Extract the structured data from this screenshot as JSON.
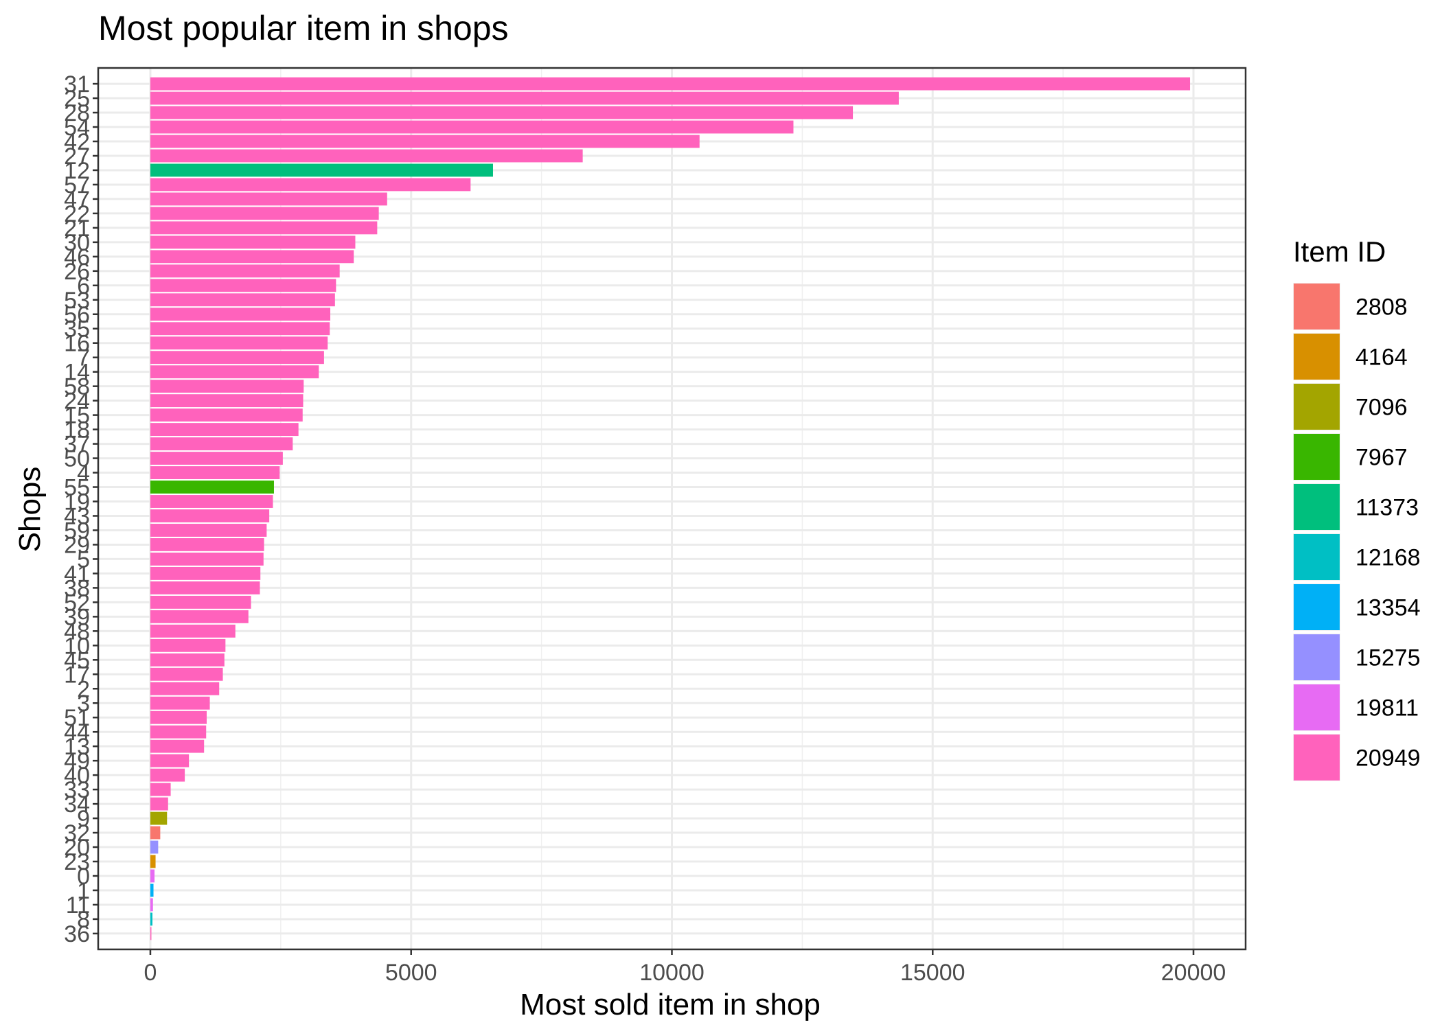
{
  "chart_data": {
    "type": "bar",
    "orientation": "horizontal",
    "title": "Most popular item in shops",
    "xlabel": "Most sold item in shop",
    "ylabel": "Shops",
    "xlim": [
      -1000,
      21000
    ],
    "x_ticks": [
      0,
      5000,
      10000,
      15000,
      20000
    ],
    "grid": true,
    "legend_position": "right",
    "legend": {
      "title": "Item ID",
      "entries": [
        {
          "label": "2808",
          "color": "#F8766D"
        },
        {
          "label": "4164",
          "color": "#D89000"
        },
        {
          "label": "7096",
          "color": "#A3A500"
        },
        {
          "label": "7967",
          "color": "#39B600"
        },
        {
          "label": "11373",
          "color": "#00BF7D"
        },
        {
          "label": "12168",
          "color": "#00BFC4"
        },
        {
          "label": "13354",
          "color": "#00B0F6"
        },
        {
          "label": "15275",
          "color": "#9590FF"
        },
        {
          "label": "19811",
          "color": "#E76BF3"
        },
        {
          "label": "20949",
          "color": "#FF62BC"
        }
      ]
    },
    "bars": [
      {
        "shop": "31",
        "value": 19934,
        "item": "20949"
      },
      {
        "shop": "25",
        "value": 14350,
        "item": "20949"
      },
      {
        "shop": "28",
        "value": 13470,
        "item": "20949"
      },
      {
        "shop": "54",
        "value": 12330,
        "item": "20949"
      },
      {
        "shop": "42",
        "value": 10530,
        "item": "20949"
      },
      {
        "shop": "27",
        "value": 8290,
        "item": "20949"
      },
      {
        "shop": "12",
        "value": 6570,
        "item": "11373"
      },
      {
        "shop": "57",
        "value": 6140,
        "item": "20949"
      },
      {
        "shop": "47",
        "value": 4540,
        "item": "20949"
      },
      {
        "shop": "22",
        "value": 4380,
        "item": "20949"
      },
      {
        "shop": "21",
        "value": 4350,
        "item": "20949"
      },
      {
        "shop": "30",
        "value": 3930,
        "item": "20949"
      },
      {
        "shop": "46",
        "value": 3900,
        "item": "20949"
      },
      {
        "shop": "26",
        "value": 3630,
        "item": "20949"
      },
      {
        "shop": "6",
        "value": 3560,
        "item": "20949"
      },
      {
        "shop": "53",
        "value": 3540,
        "item": "20949"
      },
      {
        "shop": "56",
        "value": 3450,
        "item": "20949"
      },
      {
        "shop": "35",
        "value": 3440,
        "item": "20949"
      },
      {
        "shop": "16",
        "value": 3400,
        "item": "20949"
      },
      {
        "shop": "7",
        "value": 3330,
        "item": "20949"
      },
      {
        "shop": "14",
        "value": 3230,
        "item": "20949"
      },
      {
        "shop": "58",
        "value": 2940,
        "item": "20949"
      },
      {
        "shop": "24",
        "value": 2930,
        "item": "20949"
      },
      {
        "shop": "15",
        "value": 2920,
        "item": "20949"
      },
      {
        "shop": "18",
        "value": 2840,
        "item": "20949"
      },
      {
        "shop": "37",
        "value": 2730,
        "item": "20949"
      },
      {
        "shop": "50",
        "value": 2540,
        "item": "20949"
      },
      {
        "shop": "4",
        "value": 2480,
        "item": "20949"
      },
      {
        "shop": "55",
        "value": 2370,
        "item": "7967"
      },
      {
        "shop": "19",
        "value": 2350,
        "item": "20949"
      },
      {
        "shop": "43",
        "value": 2280,
        "item": "20949"
      },
      {
        "shop": "59",
        "value": 2230,
        "item": "20949"
      },
      {
        "shop": "29",
        "value": 2180,
        "item": "20949"
      },
      {
        "shop": "5",
        "value": 2170,
        "item": "20949"
      },
      {
        "shop": "41",
        "value": 2110,
        "item": "20949"
      },
      {
        "shop": "38",
        "value": 2100,
        "item": "20949"
      },
      {
        "shop": "52",
        "value": 1930,
        "item": "20949"
      },
      {
        "shop": "39",
        "value": 1880,
        "item": "20949"
      },
      {
        "shop": "48",
        "value": 1630,
        "item": "20949"
      },
      {
        "shop": "10",
        "value": 1440,
        "item": "20949"
      },
      {
        "shop": "45",
        "value": 1420,
        "item": "20949"
      },
      {
        "shop": "17",
        "value": 1390,
        "item": "20949"
      },
      {
        "shop": "2",
        "value": 1320,
        "item": "20949"
      },
      {
        "shop": "3",
        "value": 1140,
        "item": "20949"
      },
      {
        "shop": "51",
        "value": 1080,
        "item": "20949"
      },
      {
        "shop": "44",
        "value": 1070,
        "item": "20949"
      },
      {
        "shop": "13",
        "value": 1030,
        "item": "20949"
      },
      {
        "shop": "49",
        "value": 740,
        "item": "20949"
      },
      {
        "shop": "40",
        "value": 660,
        "item": "20949"
      },
      {
        "shop": "33",
        "value": 390,
        "item": "20949"
      },
      {
        "shop": "34",
        "value": 340,
        "item": "20949"
      },
      {
        "shop": "9",
        "value": 320,
        "item": "7096"
      },
      {
        "shop": "32",
        "value": 190,
        "item": "2808"
      },
      {
        "shop": "20",
        "value": 150,
        "item": "15275"
      },
      {
        "shop": "23",
        "value": 100,
        "item": "4164"
      },
      {
        "shop": "0",
        "value": 80,
        "item": "19811"
      },
      {
        "shop": "1",
        "value": 60,
        "item": "13354"
      },
      {
        "shop": "11",
        "value": 50,
        "item": "19811"
      },
      {
        "shop": "8",
        "value": 40,
        "item": "12168"
      },
      {
        "shop": "36",
        "value": 20,
        "item": "20949"
      }
    ]
  }
}
